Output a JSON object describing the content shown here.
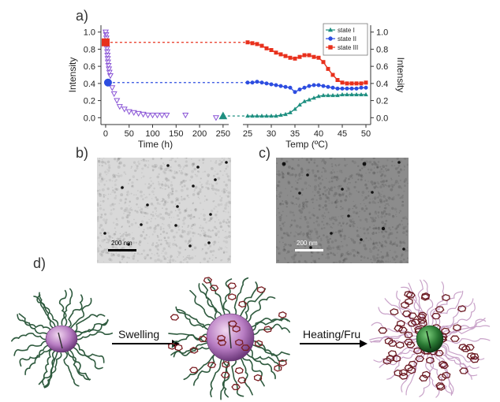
{
  "panels": {
    "a": "a)",
    "b": "b)",
    "c": "c)",
    "d": "d)"
  },
  "chart_data": [
    {
      "type": "scatter",
      "panel": "a-left",
      "xlabel": "Time (h)",
      "ylabel": "Intensity",
      "xlim": [
        -10,
        262
      ],
      "ylim": [
        -0.08,
        1.08
      ],
      "xticks": [
        0,
        50,
        100,
        150,
        200,
        250
      ],
      "yticks": [
        0.0,
        0.2,
        0.4,
        0.6,
        0.8,
        1.0
      ],
      "series": [
        {
          "marker": "triangle-down-open",
          "color": "#8a55d6",
          "x": [
            0,
            1,
            1.5,
            2,
            2.5,
            3,
            3.5,
            4,
            4.5,
            5,
            6,
            7,
            8,
            10,
            14,
            18,
            24,
            30,
            40,
            50,
            60,
            70,
            80,
            90,
            100,
            110,
            120,
            130,
            170,
            235
          ],
          "y": [
            1.0,
            0.97,
            0.93,
            0.89,
            0.85,
            0.81,
            0.77,
            0.73,
            0.69,
            0.65,
            0.61,
            0.57,
            0.53,
            0.49,
            0.35,
            0.28,
            0.2,
            0.13,
            0.1,
            0.07,
            0.06,
            0.05,
            0.04,
            0.03,
            0.03,
            0.03,
            0.03,
            0.03,
            0.03,
            0.0
          ]
        }
      ],
      "markers": [
        {
          "shape": "square",
          "color": "#e8301c",
          "x": 0,
          "y": 0.88
        },
        {
          "shape": "circle",
          "color": "#2d4de0",
          "x": 5,
          "y": 0.41
        },
        {
          "shape": "triangle-up",
          "color": "#1e8f80",
          "x": 250,
          "y": 0.02
        }
      ]
    },
    {
      "type": "line",
      "panel": "a-right",
      "xlabel": "Temp (ºC)",
      "ylabel": "Intensity",
      "xlim": [
        24,
        51
      ],
      "ylim": [
        -0.08,
        1.08
      ],
      "xticks": [
        25,
        30,
        35,
        40,
        45,
        50
      ],
      "yticks": [
        0.0,
        0.2,
        0.4,
        0.6,
        0.8,
        1.0
      ],
      "legend_position": "top-right",
      "series": [
        {
          "name": "state I",
          "marker": "triangle-up",
          "color": "#1e8f80",
          "x": [
            25,
            26,
            27,
            28,
            29,
            30,
            31,
            32,
            33,
            34,
            35,
            36,
            37,
            38,
            39,
            40,
            41,
            42,
            43,
            44,
            45,
            46,
            47,
            48,
            49,
            50
          ],
          "y": [
            0.02,
            0.02,
            0.02,
            0.02,
            0.02,
            0.02,
            0.02,
            0.03,
            0.04,
            0.06,
            0.1,
            0.15,
            0.19,
            0.21,
            0.23,
            0.25,
            0.26,
            0.26,
            0.26,
            0.26,
            0.27,
            0.27,
            0.27,
            0.27,
            0.27,
            0.27
          ]
        },
        {
          "name": "state II",
          "marker": "circle",
          "color": "#2d4de0",
          "x": [
            25,
            26,
            27,
            28,
            29,
            30,
            31,
            32,
            33,
            34,
            35,
            36,
            37,
            38,
            39,
            40,
            41,
            42,
            43,
            44,
            45,
            46,
            47,
            48,
            49,
            50
          ],
          "y": [
            0.41,
            0.41,
            0.42,
            0.41,
            0.4,
            0.39,
            0.38,
            0.37,
            0.36,
            0.35,
            0.3,
            0.33,
            0.35,
            0.37,
            0.38,
            0.38,
            0.37,
            0.36,
            0.35,
            0.34,
            0.34,
            0.34,
            0.34,
            0.34,
            0.35,
            0.35
          ]
        },
        {
          "name": "state III",
          "marker": "square",
          "color": "#e8301c",
          "x": [
            25,
            26,
            27,
            28,
            29,
            30,
            31,
            32,
            33,
            34,
            35,
            36,
            37,
            38,
            39,
            40,
            41,
            42,
            43,
            44,
            45,
            46,
            47,
            48,
            49,
            50
          ],
          "y": [
            0.88,
            0.87,
            0.86,
            0.84,
            0.81,
            0.79,
            0.76,
            0.74,
            0.72,
            0.7,
            0.69,
            0.71,
            0.73,
            0.73,
            0.71,
            0.7,
            0.65,
            0.57,
            0.5,
            0.44,
            0.41,
            0.4,
            0.4,
            0.4,
            0.4,
            0.41
          ]
        }
      ]
    }
  ],
  "links": [
    {
      "color": "#e8301c",
      "y": 0.88
    },
    {
      "color": "#2d4de0",
      "y": 0.41
    },
    {
      "color": "#1e8f80",
      "y": 0.02
    }
  ],
  "tem": {
    "b_scale": "200 nm",
    "c_scale": "200 nm"
  },
  "scheme": {
    "step1": "Swelling",
    "step2": "Heating/Fru"
  }
}
